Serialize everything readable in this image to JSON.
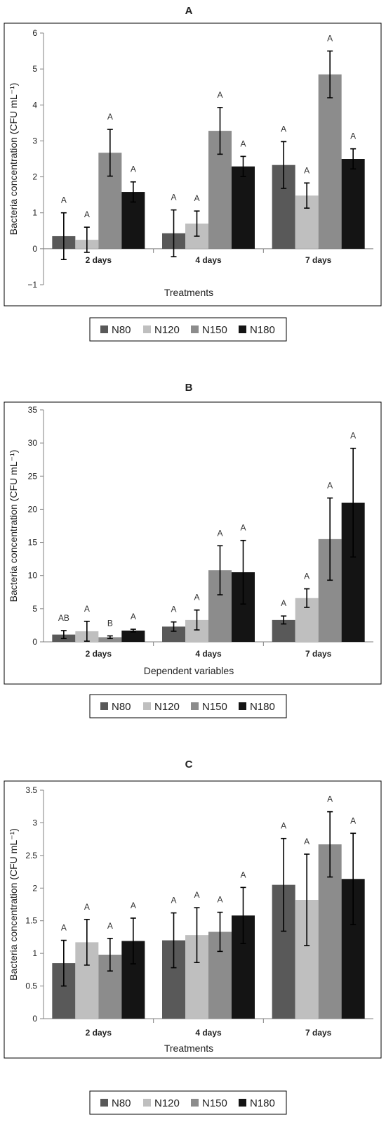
{
  "chart_data": [
    {
      "type": "bar",
      "title": "A",
      "xlabel": "Treatments",
      "ylabel": "Bacteria concentration (CFU mL⁻¹)",
      "ylim": [
        -1,
        6
      ],
      "yticks": [
        -1,
        0,
        1,
        2,
        3,
        4,
        5,
        6
      ],
      "ytick_labels": [
        "−1",
        "0",
        "1",
        "2",
        "3",
        "4",
        "5",
        "6"
      ],
      "categories": [
        "2 days",
        "4 days",
        "7 days"
      ],
      "legend_position": "bottom",
      "series": [
        {
          "name": "N80",
          "values": [
            0.35,
            0.43,
            2.33
          ],
          "errors": [
            0.65,
            0.65,
            0.65
          ],
          "labels": [
            "A",
            "A",
            "A"
          ]
        },
        {
          "name": "N120",
          "values": [
            0.25,
            0.7,
            1.48
          ],
          "errors": [
            0.35,
            0.35,
            0.35
          ],
          "labels": [
            "A",
            "A",
            "A"
          ]
        },
        {
          "name": "N150",
          "values": [
            2.67,
            3.28,
            4.85
          ],
          "errors": [
            0.65,
            0.65,
            0.65
          ],
          "labels": [
            "A",
            "A",
            "A"
          ]
        },
        {
          "name": "N180",
          "values": [
            1.58,
            2.29,
            2.5
          ],
          "errors": [
            0.28,
            0.28,
            0.28
          ],
          "labels": [
            "A",
            "A",
            "A"
          ]
        }
      ]
    },
    {
      "type": "bar",
      "title": "B",
      "xlabel": "Dependent variables",
      "ylabel": "Bacteria concentration (CFU mL⁻¹)",
      "ylim": [
        0,
        35
      ],
      "yticks": [
        0,
        5,
        10,
        15,
        20,
        25,
        30,
        35
      ],
      "ytick_labels": [
        "0",
        "5",
        "10",
        "15",
        "20",
        "25",
        "30",
        "35"
      ],
      "categories": [
        "2 days",
        "4 days",
        "7 days"
      ],
      "legend_position": "bottom",
      "series": [
        {
          "name": "N80",
          "values": [
            1.1,
            2.3,
            3.3
          ],
          "errors": [
            0.6,
            0.7,
            0.6
          ],
          "labels": [
            "AB",
            "A",
            "A"
          ]
        },
        {
          "name": "N120",
          "values": [
            1.6,
            3.3,
            6.6
          ],
          "errors": [
            1.5,
            1.5,
            1.4
          ],
          "labels": [
            "A",
            "A",
            "A"
          ]
        },
        {
          "name": "N150",
          "values": [
            0.7,
            10.8,
            15.5
          ],
          "errors": [
            0.2,
            3.7,
            6.2
          ],
          "labels": [
            "B",
            "A",
            "A"
          ]
        },
        {
          "name": "N180",
          "values": [
            1.7,
            10.5,
            21.0
          ],
          "errors": [
            0.2,
            4.8,
            8.2
          ],
          "labels": [
            "A",
            "A",
            "A"
          ]
        }
      ]
    },
    {
      "type": "bar",
      "title": "C",
      "xlabel": "Treatments",
      "ylabel": "Bacteria concentration (CFU mL⁻¹)",
      "ylim": [
        0,
        3.5
      ],
      "yticks": [
        0,
        0.5,
        1,
        1.5,
        2,
        2.5,
        3,
        3.5
      ],
      "ytick_labels": [
        "0",
        "0.5",
        "1",
        "1.5",
        "2",
        "2.5",
        "3",
        "3.5"
      ],
      "categories": [
        "2 days",
        "4 days",
        "7 days"
      ],
      "legend_position": "bottom",
      "series": [
        {
          "name": "N80",
          "values": [
            0.85,
            1.2,
            2.05
          ],
          "errors": [
            0.35,
            0.42,
            0.71
          ],
          "labels": [
            "A",
            "A",
            "A"
          ]
        },
        {
          "name": "N120",
          "values": [
            1.17,
            1.28,
            1.82
          ],
          "errors": [
            0.35,
            0.42,
            0.7
          ],
          "labels": [
            "A",
            "A",
            "A"
          ]
        },
        {
          "name": "N150",
          "values": [
            0.98,
            1.33,
            2.67
          ],
          "errors": [
            0.25,
            0.3,
            0.5
          ],
          "labels": [
            "A",
            "A",
            "A"
          ]
        },
        {
          "name": "N180",
          "values": [
            1.19,
            1.58,
            2.14
          ],
          "errors": [
            0.35,
            0.43,
            0.7
          ],
          "labels": [
            "A",
            "A",
            "A"
          ]
        }
      ]
    }
  ],
  "colors": {
    "N80": "#595959",
    "N120": "#bfbfbf",
    "N150": "#8c8c8c",
    "N180": "#141414",
    "axis": "#808080",
    "frame": "#000000"
  }
}
